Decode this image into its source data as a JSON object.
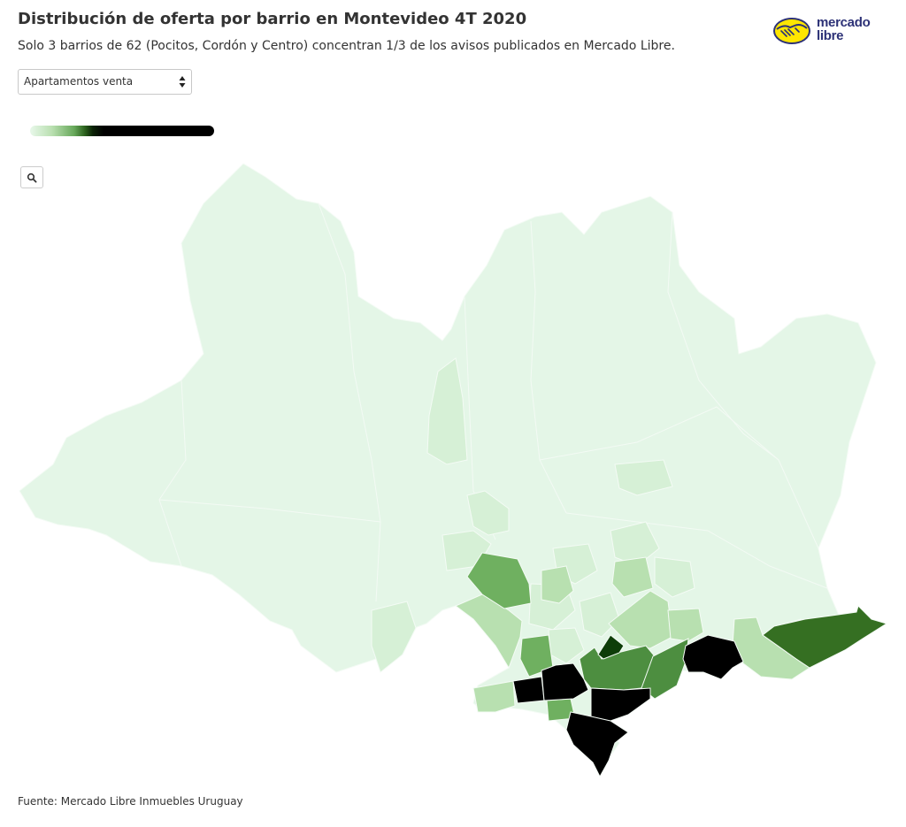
{
  "header": {
    "title": "Distribución de oferta por barrio en Montevideo 4T 2020",
    "subtitle": "Solo 3 barrios de 62 (Pocitos, Cordón y Centro) concentran 1/3 de los avisos publicados en Mercado Libre."
  },
  "logo": {
    "line1": "mercado",
    "line2": "libre",
    "icon": "handshake-icon",
    "colors": {
      "yellow": "#ffe600",
      "blue": "#2d3277"
    }
  },
  "controls": {
    "property_type_select": {
      "selected": "Apartamentos venta"
    },
    "zoom_icon": "magnifier-icon"
  },
  "map_colors": {
    "base": "#e4f6e7",
    "border": "#f4fbf5",
    "light": "#d6f0d6",
    "medium_light": "#b8e0b0",
    "medium": "#6fb060",
    "medium_dark": "#4d8e40",
    "dark_green": "#356f22",
    "darkest_green": "#0e3d09",
    "black": "#000000"
  },
  "footer": {
    "source": "Fuente: Mercado Libre Inmuebles Uruguay"
  }
}
